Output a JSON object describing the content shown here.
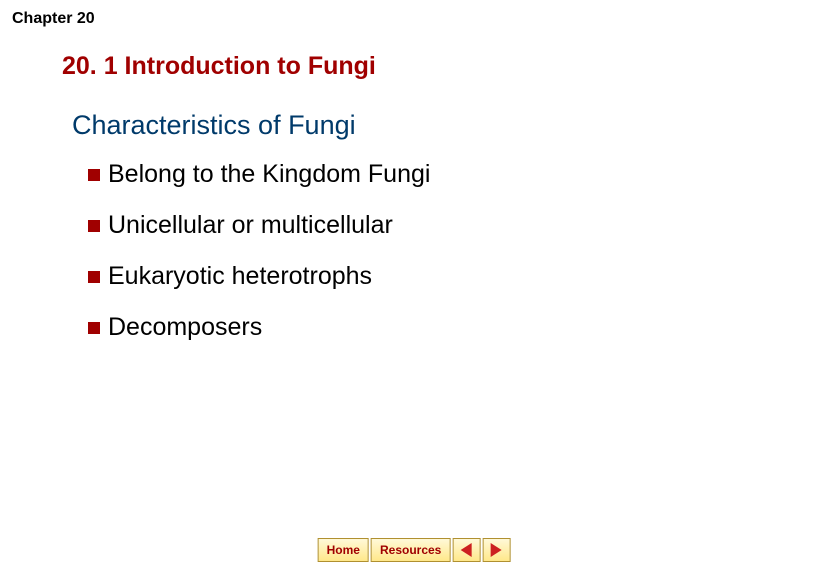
{
  "chapter_label": {
    "text": "Chapter 20",
    "fontsize": 16
  },
  "section_title": {
    "text": "20. 1 Introduction to Fungi",
    "fontsize": 25,
    "color": "#a00000"
  },
  "sub_heading": {
    "text": "Characteristics of Fungi",
    "fontsize": 27,
    "color": "#003a6a"
  },
  "bullets": {
    "marker_color": "#a00000",
    "text_color": "#000000",
    "fontsize": 25,
    "items": [
      "Belong to the Kingdom Fungi",
      "Unicellular or multicellular",
      "Eukaryotic heterotrophs",
      "Decomposers"
    ]
  },
  "nav": {
    "home_label": "Home",
    "resources_label": "Resources",
    "btn_text_color": "#a00000",
    "btn_bg_top": "#fff9d8",
    "btn_bg_bottom": "#ffe88a",
    "btn_border": "#b09030",
    "arrow_color": "#cc2020"
  }
}
